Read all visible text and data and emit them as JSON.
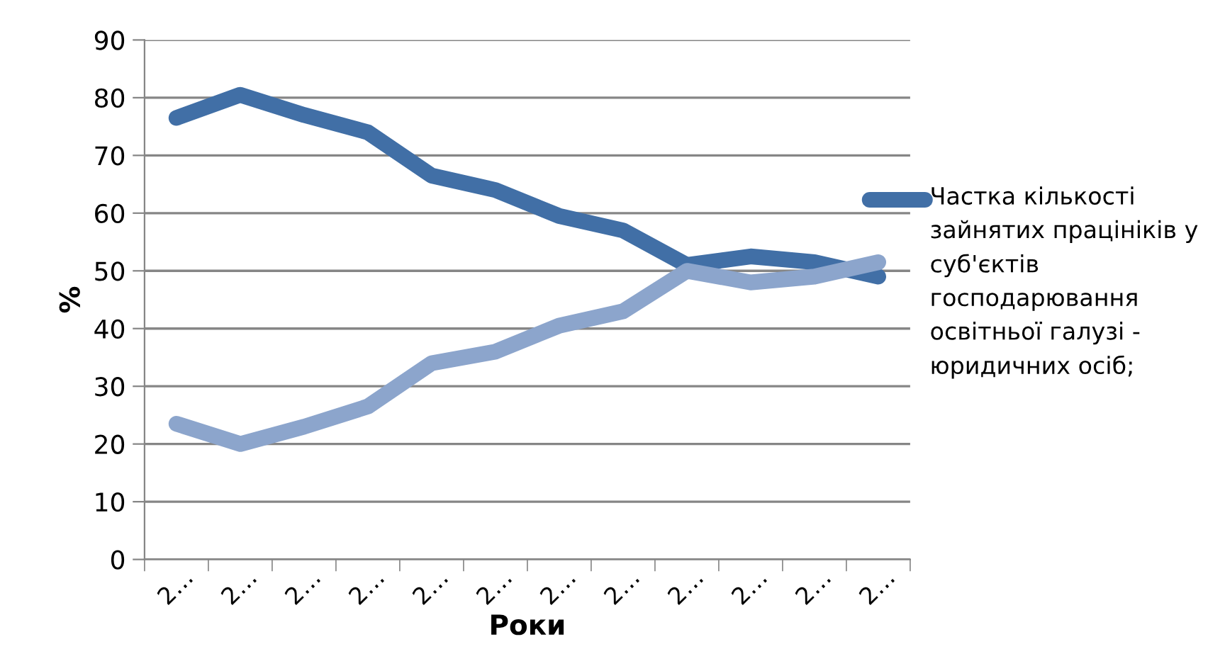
{
  "chart_data": {
    "type": "line",
    "xlabel": "Роки",
    "ylabel": "%",
    "categories": [
      "2…",
      "2…",
      "2…",
      "2…",
      "2…",
      "2…",
      "2…",
      "2…",
      "2…",
      "2…",
      "2…",
      "2…"
    ],
    "series": [
      {
        "name": "Частка кількості зайнятих працініків у суб'єктів господарювання освітньої галузі - юридичних осіб;",
        "color": "#416fa6",
        "values": [
          76.5,
          80.5,
          77,
          74,
          66.5,
          64,
          59.5,
          57,
          51,
          52.5,
          51.5,
          49
        ]
      },
      {
        "color": "#8ca5cc",
        "values": [
          23.5,
          20,
          23,
          26.5,
          34,
          36,
          40.5,
          43,
          50,
          48,
          49,
          51.5
        ]
      }
    ],
    "ylim": [
      0,
      90
    ],
    "yticks": [
      0,
      10,
      20,
      30,
      40,
      50,
      60,
      70,
      80,
      90
    ],
    "grid": "y",
    "legend": "right",
    "line_style": "solid"
  }
}
